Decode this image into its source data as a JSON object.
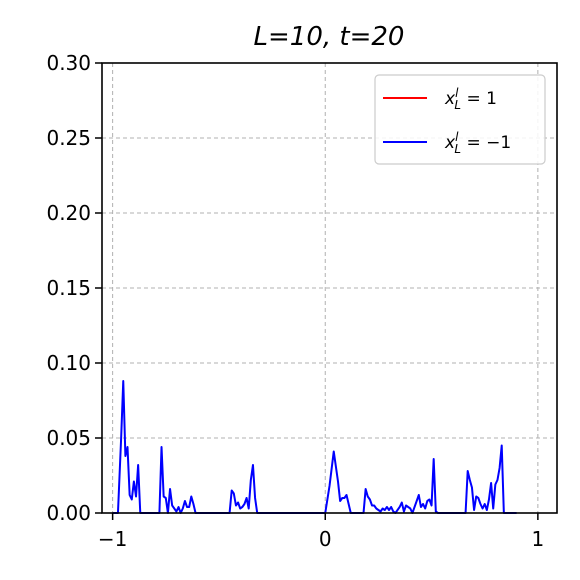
{
  "chart_data": {
    "type": "line",
    "title": "L=10, t=20",
    "xlabel": "",
    "ylabel": "",
    "xlim": [
      -1.05,
      1.09
    ],
    "ylim": [
      0,
      0.3
    ],
    "xticks": [
      -1,
      0,
      1
    ],
    "xtick_labels": [
      "−1",
      "0",
      "1"
    ],
    "yticks": [
      0.0,
      0.05,
      0.1,
      0.15,
      0.2,
      0.25,
      0.3
    ],
    "ytick_labels": [
      "0.00",
      "0.05",
      "0.10",
      "0.15",
      "0.20",
      "0.25",
      "0.30"
    ],
    "grid": true,
    "legend_placement": "top-right",
    "series": [
      {
        "name": "x_L^l = 1",
        "legend_main": "x",
        "legend_sup": "l",
        "legend_sub": "L",
        "legend_rest": " = 1",
        "color": "#ff0000",
        "points": []
      },
      {
        "name": "x_L^l = −1",
        "legend_main": "x",
        "legend_sup": "l",
        "legend_sub": "L",
        "legend_rest": " = −1",
        "color": "#0000ff",
        "points": [
          [
            -1.0,
            0.0
          ],
          [
            -0.975,
            0.0
          ],
          [
            -0.96,
            0.05
          ],
          [
            -0.95,
            0.088
          ],
          [
            -0.94,
            0.038
          ],
          [
            -0.93,
            0.044
          ],
          [
            -0.92,
            0.012
          ],
          [
            -0.91,
            0.009
          ],
          [
            -0.9,
            0.021
          ],
          [
            -0.89,
            0.011
          ],
          [
            -0.88,
            0.032
          ],
          [
            -0.87,
            0.0
          ],
          [
            -0.78,
            0.0
          ],
          [
            -0.77,
            0.044
          ],
          [
            -0.76,
            0.011
          ],
          [
            -0.75,
            0.01
          ],
          [
            -0.74,
            0.0
          ],
          [
            -0.73,
            0.016
          ],
          [
            -0.72,
            0.005
          ],
          [
            -0.71,
            0.003
          ],
          [
            -0.7,
            0.001
          ],
          [
            -0.69,
            0.004
          ],
          [
            -0.68,
            0.0
          ],
          [
            -0.67,
            0.003
          ],
          [
            -0.66,
            0.008
          ],
          [
            -0.65,
            0.004
          ],
          [
            -0.64,
            0.004
          ],
          [
            -0.63,
            0.011
          ],
          [
            -0.62,
            0.006
          ],
          [
            -0.61,
            0.0
          ],
          [
            -0.45,
            0.0
          ],
          [
            -0.44,
            0.015
          ],
          [
            -0.43,
            0.013
          ],
          [
            -0.42,
            0.005
          ],
          [
            -0.41,
            0.007
          ],
          [
            -0.4,
            0.003
          ],
          [
            -0.39,
            0.004
          ],
          [
            -0.38,
            0.006
          ],
          [
            -0.37,
            0.01
          ],
          [
            -0.36,
            0.003
          ],
          [
            -0.35,
            0.022
          ],
          [
            -0.34,
            0.032
          ],
          [
            -0.33,
            0.01
          ],
          [
            -0.32,
            0.0
          ],
          [
            0.0,
            0.0
          ],
          [
            0.02,
            0.018
          ],
          [
            0.04,
            0.041
          ],
          [
            0.06,
            0.021
          ],
          [
            0.07,
            0.008
          ],
          [
            0.08,
            0.01
          ],
          [
            0.09,
            0.01
          ],
          [
            0.1,
            0.012
          ],
          [
            0.11,
            0.006
          ],
          [
            0.12,
            0.0
          ],
          [
            0.18,
            0.0
          ],
          [
            0.19,
            0.016
          ],
          [
            0.2,
            0.011
          ],
          [
            0.21,
            0.009
          ],
          [
            0.22,
            0.005
          ],
          [
            0.23,
            0.005
          ],
          [
            0.24,
            0.003
          ],
          [
            0.25,
            0.002
          ],
          [
            0.26,
            0.001
          ],
          [
            0.27,
            0.003
          ],
          [
            0.28,
            0.002
          ],
          [
            0.29,
            0.004
          ],
          [
            0.3,
            0.002
          ],
          [
            0.31,
            0.004
          ],
          [
            0.32,
            0.001
          ],
          [
            0.33,
            0.0
          ],
          [
            0.35,
            0.004
          ],
          [
            0.36,
            0.007
          ],
          [
            0.37,
            0.001
          ],
          [
            0.38,
            0.005
          ],
          [
            0.39,
            0.004
          ],
          [
            0.4,
            0.003
          ],
          [
            0.41,
            0.0
          ],
          [
            0.44,
            0.012
          ],
          [
            0.45,
            0.004
          ],
          [
            0.46,
            0.006
          ],
          [
            0.47,
            0.003
          ],
          [
            0.48,
            0.008
          ],
          [
            0.49,
            0.009
          ],
          [
            0.5,
            0.005
          ],
          [
            0.51,
            0.036
          ],
          [
            0.52,
            0.001
          ],
          [
            0.53,
            0.0
          ],
          [
            0.66,
            0.0
          ],
          [
            0.67,
            0.028
          ],
          [
            0.68,
            0.022
          ],
          [
            0.69,
            0.017
          ],
          [
            0.7,
            0.002
          ],
          [
            0.71,
            0.011
          ],
          [
            0.72,
            0.01
          ],
          [
            0.73,
            0.006
          ],
          [
            0.74,
            0.003
          ],
          [
            0.75,
            0.006
          ],
          [
            0.76,
            0.002
          ],
          [
            0.77,
            0.009
          ],
          [
            0.78,
            0.02
          ],
          [
            0.79,
            0.003
          ],
          [
            0.8,
            0.019
          ],
          [
            0.81,
            0.022
          ],
          [
            0.82,
            0.03
          ],
          [
            0.83,
            0.045
          ],
          [
            0.84,
            0.0
          ],
          [
            0.9,
            0.0
          ]
        ]
      }
    ]
  }
}
